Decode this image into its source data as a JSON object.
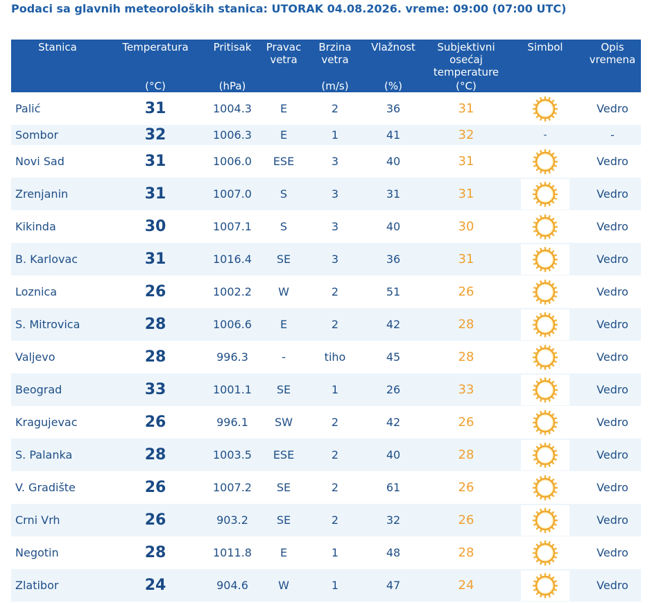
{
  "header": {
    "title": "Podaci sa glavnih meteoroloških stanica:  UTORAK 04.08.2026.  vreme: 09:00 (07:00 UTC)"
  },
  "table": {
    "columns": [
      {
        "label": "Stanica"
      },
      {
        "label": "Temperatura",
        "unit": "(°C)"
      },
      {
        "label": "Pritisak",
        "unit": "(hPa)"
      },
      {
        "label": "Pravac vetra"
      },
      {
        "label": "Brzina vetra",
        "unit": "(m/s)"
      },
      {
        "label": "Vlažnost",
        "unit": "(%)"
      },
      {
        "label": "Subjektivni osećaj temperature",
        "unit": "(°C)"
      },
      {
        "label": "Simbol"
      },
      {
        "label": "Opis vremena"
      }
    ],
    "rows": [
      [
        "Palić",
        "31",
        "1004.3",
        "E",
        "2",
        "36",
        "31",
        "Vedro"
      ],
      [
        "Sombor",
        "32",
        "1006.3",
        "E",
        "1",
        "41",
        "32",
        "-",
        "-"
      ],
      [
        "Novi Sad",
        "31",
        "1006.0",
        "ESE",
        "3",
        "40",
        "31",
        "Vedro"
      ],
      [
        "Zrenjanin",
        "31",
        "1007.0",
        "S",
        "3",
        "31",
        "31",
        "Vedro"
      ],
      [
        "Kikinda",
        "30",
        "1007.1",
        "S",
        "3",
        "40",
        "30",
        "Vedro"
      ],
      [
        "B. Karlovac",
        "31",
        "1016.4",
        "SE",
        "3",
        "36",
        "31",
        "Vedro"
      ],
      [
        "Loznica",
        "26",
        "1002.2",
        "W",
        "2",
        "51",
        "26",
        "Vedro"
      ],
      [
        "S. Mitrovica",
        "28",
        "1006.6",
        "E",
        "2",
        "42",
        "28",
        "Vedro"
      ],
      [
        "Valjevo",
        "28",
        "996.3",
        "-",
        "tiho",
        "45",
        "28",
        "Vedro"
      ],
      [
        "Beograd",
        "33",
        "1001.1",
        "SE",
        "1",
        "26",
        "33",
        "Vedro"
      ],
      [
        "Kragujevac",
        "26",
        "996.1",
        "SW",
        "2",
        "42",
        "26",
        "Vedro"
      ],
      [
        "S. Palanka",
        "28",
        "1003.5",
        "ESE",
        "2",
        "40",
        "28",
        "Vedro"
      ],
      [
        "V. Gradište",
        "26",
        "1007.2",
        "SE",
        "2",
        "61",
        "26",
        "Vedro"
      ],
      [
        "Crni Vrh",
        "26",
        "903.2",
        "SE",
        "2",
        "32",
        "26",
        "Vedro"
      ],
      [
        "Negotin",
        "28",
        "1011.8",
        "E",
        "1",
        "48",
        "28",
        "Vedro"
      ],
      [
        "Zlatibor",
        "24",
        "904.6",
        "W",
        "1",
        "47",
        "24",
        "Vedro"
      ]
    ]
  }
}
